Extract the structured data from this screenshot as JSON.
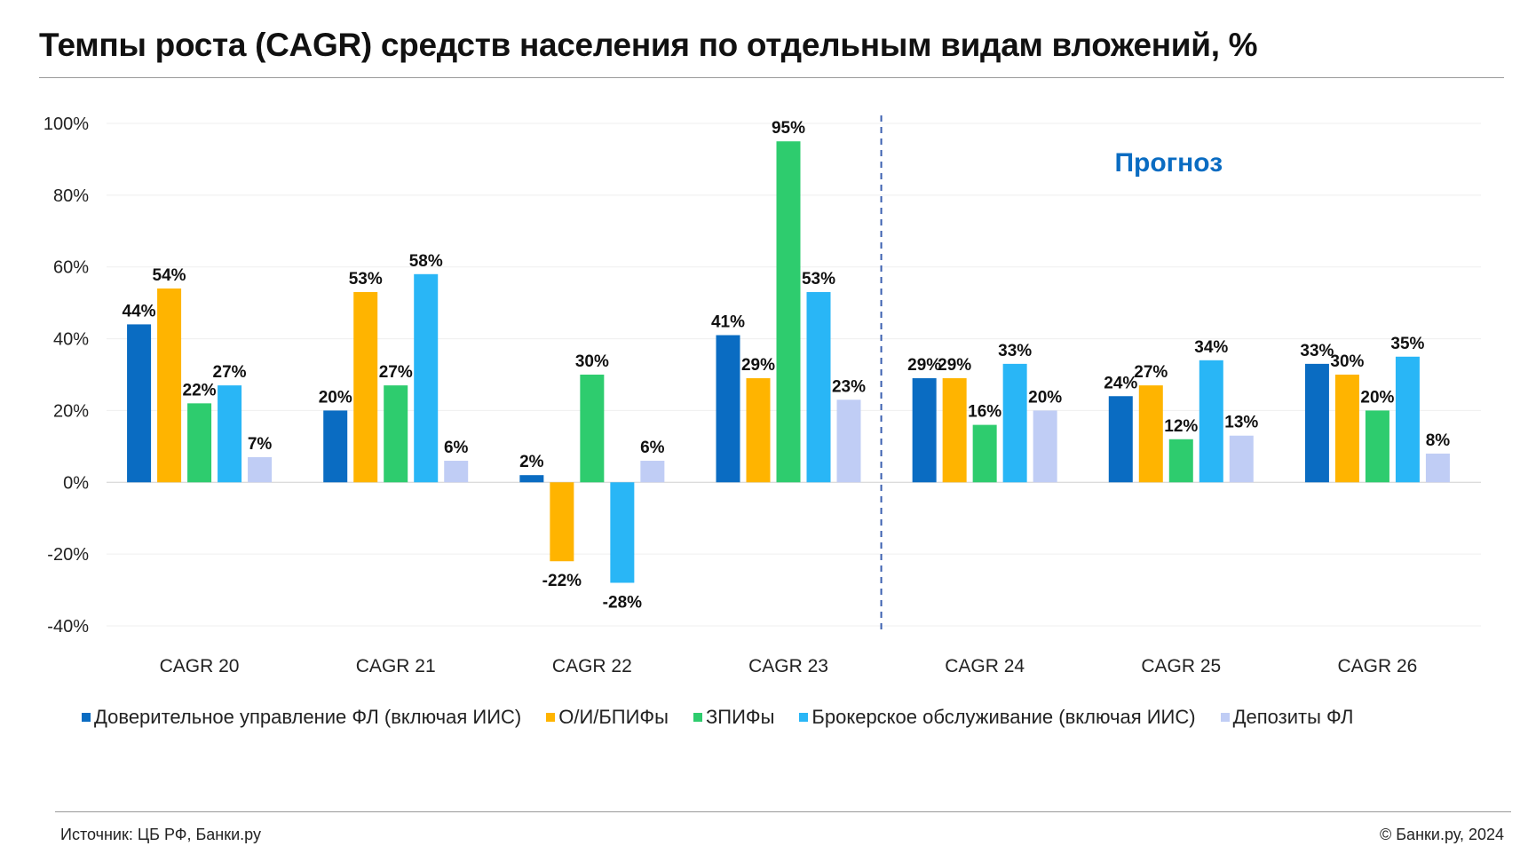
{
  "title": "Темпы роста (CAGR) средств населения по отдельным видам вложений, %",
  "footer": {
    "source": "Источник: ЦБ РФ, Банки.ру",
    "copyright": "© Банки.ру, 2024"
  },
  "chart_data": {
    "type": "bar",
    "categories": [
      "CAGR 20",
      "CAGR 21",
      "CAGR 22",
      "CAGR 23",
      "CAGR 24",
      "CAGR 25",
      "CAGR 26"
    ],
    "series": [
      {
        "name": "Доверительное управление ФЛ (включая ИИС)",
        "color": "#0a6cc2",
        "values": [
          44,
          20,
          2,
          41,
          29,
          24,
          33
        ]
      },
      {
        "name": "О/И/БПИФы",
        "color": "#ffb400",
        "values": [
          54,
          53,
          -22,
          29,
          29,
          27,
          30
        ]
      },
      {
        "name": "ЗПИФы",
        "color": "#2ecc6e",
        "values": [
          22,
          27,
          30,
          95,
          16,
          12,
          20
        ]
      },
      {
        "name": "Брокерское обслуживание (включая ИИС)",
        "color": "#29b6f6",
        "values": [
          27,
          58,
          -28,
          53,
          33,
          34,
          35
        ]
      },
      {
        "name": "Депозиты ФЛ",
        "color": "#c0cdf5",
        "values": [
          7,
          6,
          6,
          23,
          20,
          13,
          8
        ]
      }
    ],
    "ylim": [
      -40,
      100
    ],
    "yticks": [
      "100%",
      "80%",
      "60%",
      "40%",
      "20%",
      "0%",
      "-20%",
      "-40%"
    ],
    "ytick_values": [
      100,
      80,
      60,
      40,
      20,
      0,
      -20,
      -40
    ],
    "value_suffix": "%",
    "forecast_label": "Прогноз",
    "forecast_start_category": "CAGR 24",
    "grid": true,
    "legend_position": "bottom"
  }
}
